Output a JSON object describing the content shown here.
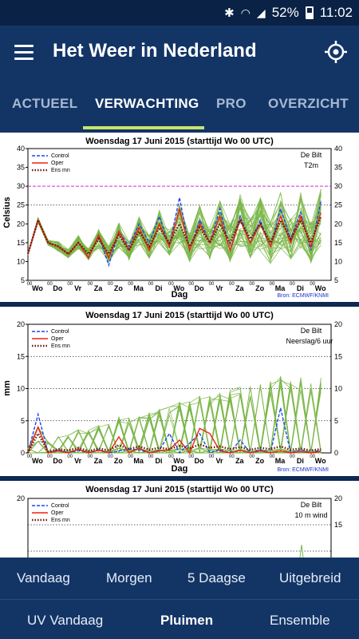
{
  "status": {
    "battery": "52%",
    "time": "11:02"
  },
  "header": {
    "title": "Het Weer in Nederland"
  },
  "tabs": [
    {
      "label": "ACTUEEL"
    },
    {
      "label": "VERWACHTING"
    },
    {
      "label": "PRO"
    },
    {
      "label": "OVERZICHT"
    }
  ],
  "charts": [
    {
      "title": "Woensdag   17 Juni      2015   (starttijd   Wo 00 UTC)",
      "location": "De Bilt",
      "variable": "T2m",
      "ylabel": "Celsius",
      "xlabel": "Dag",
      "source": "Bron: ECMWF/KNMI",
      "legend": [
        "Control",
        "Oper",
        "Ens mn"
      ],
      "yticks": [
        "40",
        "35",
        "30",
        "25",
        "20",
        "15",
        "10",
        "5"
      ],
      "days": [
        "Wo",
        "Do",
        "Vr",
        "Za",
        "Zo",
        "Ma",
        "Di",
        "Wo",
        "Do",
        "Vr",
        "Za",
        "Zo",
        "Ma",
        "Di",
        "Wo"
      ]
    },
    {
      "title": "Woensdag   17 Juni      2015   (starttijd   Wo 00 UTC)",
      "location": "De Bilt",
      "variable": "Neerslag/6 uur",
      "ylabel": "mm",
      "xlabel": "Dag",
      "source": "Bron: ECMWF/KNMI",
      "legend": [
        "Control",
        "Oper",
        "Ens mn"
      ],
      "yticks": [
        "20",
        "15",
        "10",
        "5",
        "0"
      ],
      "days": [
        "Wo",
        "Do",
        "Vr",
        "Za",
        "Zo",
        "Ma",
        "Di",
        "Wo",
        "Do",
        "Vr",
        "Za",
        "Zo",
        "Ma",
        "Di",
        "Wo"
      ]
    },
    {
      "title": "Woensdag   17 Juni      2015   (starttijd   Wo 00 UTC)",
      "location": "De Bilt",
      "variable": "10 m wind",
      "legend": [
        "Control",
        "Oper",
        "Ens mn"
      ],
      "yticks": [
        "20",
        "15"
      ]
    }
  ],
  "bottom_nav": {
    "row1": [
      "Vandaag",
      "Morgen",
      "5 Daagse",
      "Uitgebreid"
    ],
    "row2": [
      "UV Vandaag",
      "Pluimen",
      "Ensemble"
    ]
  },
  "chart_data": [
    {
      "type": "line",
      "title": "Woensdag 17 Juni 2015 (starttijd Wo 00 UTC)",
      "xlabel": "Dag",
      "ylabel": "Celsius",
      "ylim": [
        5,
        40
      ],
      "x": [
        0,
        0.5,
        1,
        1.5,
        2,
        2.5,
        3,
        3.5,
        4,
        4.5,
        5,
        5.5,
        6,
        6.5,
        7,
        7.5,
        8,
        8.5,
        9,
        9.5,
        10,
        10.5,
        11,
        11.5,
        12,
        12.5,
        13,
        13.5,
        14,
        14.5
      ],
      "series": [
        {
          "name": "Control",
          "values": [
            12,
            21,
            15,
            14,
            12,
            15,
            11,
            17,
            9,
            18,
            14,
            20,
            15,
            22,
            14,
            27,
            13,
            21,
            15,
            24,
            13,
            22,
            15,
            21,
            14,
            24,
            16,
            23,
            13,
            26
          ]
        },
        {
          "name": "Oper",
          "values": [
            12,
            21,
            15,
            14,
            12,
            15,
            11,
            17,
            11,
            18,
            13,
            19,
            13,
            20,
            14,
            24,
            13,
            20,
            15,
            22,
            13,
            21,
            15,
            20,
            14,
            22,
            15,
            22,
            14,
            23
          ]
        },
        {
          "name": "Ens mn",
          "values": [
            12,
            21,
            15,
            14,
            12,
            15,
            12,
            16,
            12,
            17,
            13,
            18,
            14,
            19,
            15,
            20,
            14,
            19,
            15,
            20,
            15,
            21,
            16,
            20,
            15,
            21,
            16,
            21,
            15,
            22
          ]
        }
      ]
    },
    {
      "type": "line",
      "title": "Woensdag 17 Juni 2015 (starttijd Wo 00 UTC)",
      "xlabel": "Dag",
      "ylabel": "mm",
      "ylim": [
        0,
        20
      ],
      "x": [
        0,
        0.5,
        1,
        1.5,
        2,
        2.5,
        3,
        3.5,
        4,
        4.5,
        5,
        5.5,
        6,
        6.5,
        7,
        7.5,
        8,
        8.5,
        9,
        9.5,
        10,
        10.5,
        11,
        11.5,
        12,
        12.5,
        13,
        13.5,
        14,
        14.5
      ],
      "series": [
        {
          "name": "Control",
          "values": [
            0,
            6,
            0,
            0.5,
            0,
            0.4,
            0,
            0.5,
            0,
            0.3,
            0.6,
            0.5,
            0,
            0.4,
            3,
            0,
            1.5,
            3,
            0,
            0.5,
            0,
            2,
            0,
            0.5,
            0,
            7,
            0,
            0.5,
            0,
            0.5
          ]
        },
        {
          "name": "Oper",
          "values": [
            0,
            4,
            0,
            0.3,
            0,
            0.6,
            0,
            0.4,
            0,
            2.5,
            0,
            0.8,
            0,
            0.3,
            0.5,
            2,
            0,
            3.8,
            3,
            0.3,
            0,
            0.4,
            0,
            0.3,
            0,
            0.3,
            0,
            0.2,
            0,
            0.2
          ]
        },
        {
          "name": "Ens mn",
          "values": [
            0,
            3,
            0.2,
            0.6,
            0.4,
            0.8,
            0.3,
            0.7,
            0.4,
            1.2,
            0.6,
            1,
            0.5,
            0.8,
            0.6,
            1.1,
            0.7,
            1.3,
            0.8,
            1,
            0.6,
            0.9,
            0.5,
            0.8,
            0.6,
            1,
            0.5,
            0.7,
            0.4,
            0.6
          ]
        }
      ]
    }
  ]
}
